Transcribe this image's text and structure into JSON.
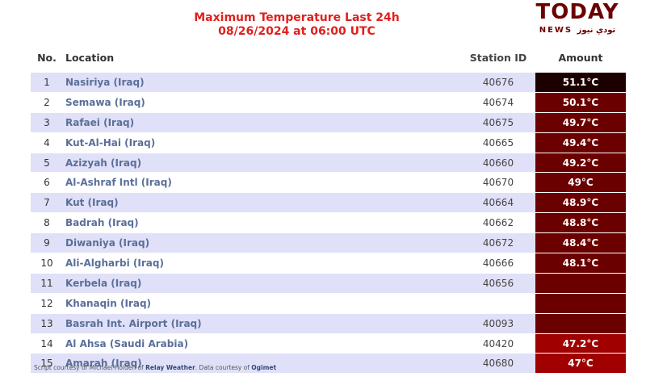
{
  "title": "Maximum Temperature Last 24h",
  "subtitle": "08/26/2024 at 06:00 UTC",
  "headers": {
    "no": "No.",
    "location": "Location",
    "station": "Station ID",
    "amount": "Amount"
  },
  "rows": [
    {
      "no": "1",
      "location": "Nasiriya (Iraq)",
      "station": "40676",
      "amount": "51.1°C",
      "color": "#1c0000"
    },
    {
      "no": "2",
      "location": "Semawa (Iraq)",
      "station": "40674",
      "amount": "50.1°C",
      "color": "#6b0000"
    },
    {
      "no": "3",
      "location": "Rafaei (Iraq)",
      "station": "40675",
      "amount": "49.7°C",
      "color": "#6b0000"
    },
    {
      "no": "4",
      "location": "Kut-Al-Hai (Iraq)",
      "station": "40665",
      "amount": "49.4°C",
      "color": "#6b0000"
    },
    {
      "no": "5",
      "location": "Azizyah (Iraq)",
      "station": "40660",
      "amount": "49.2°C",
      "color": "#6b0000"
    },
    {
      "no": "6",
      "location": "Al-Ashraf Intl (Iraq)",
      "station": "40670",
      "amount": "49°C",
      "color": "#6b0000"
    },
    {
      "no": "7",
      "location": "Kut (Iraq)",
      "station": "40664",
      "amount": "48.9°C",
      "color": "#6b0000"
    },
    {
      "no": "8",
      "location": "Badrah (Iraq)",
      "station": "40662",
      "amount": "48.8°C",
      "color": "#6b0000"
    },
    {
      "no": "9",
      "location": "Diwaniya (Iraq)",
      "station": "40672",
      "amount": "48.4°C",
      "color": "#6b0000"
    },
    {
      "no": "10",
      "location": "Ali-Algharbi (Iraq)",
      "station": "40666",
      "amount": "48.1°C",
      "color": "#6b0000"
    },
    {
      "no": "11",
      "location": "Kerbela (Iraq)",
      "station": "40656",
      "amount": "",
      "color": "#6b0000"
    },
    {
      "no": "12",
      "location": "Khanaqin (Iraq)",
      "station": "",
      "amount": "",
      "color": "#6b0000"
    },
    {
      "no": "13",
      "location": "Basrah Int. Airport (Iraq)",
      "station": "40093",
      "amount": "",
      "color": "#6b0000"
    },
    {
      "no": "14",
      "location": "Al Ahsa (Saudi Arabia)",
      "station": "40420",
      "amount": "47.2°C",
      "color": "#a00000"
    },
    {
      "no": "15",
      "location": "Amarah (Iraq)",
      "station": "40680",
      "amount": "47°C",
      "color": "#a00000"
    }
  ],
  "footer": {
    "prefix": "Script courtesy of  Michael Holden of ",
    "relay": "Relay Weather",
    "mid": ". Data courtesy of ",
    "ogimet": "Ogimet"
  },
  "watermark": {
    "logo": "TODAY",
    "sub": "NEWS تودي نيوز"
  }
}
